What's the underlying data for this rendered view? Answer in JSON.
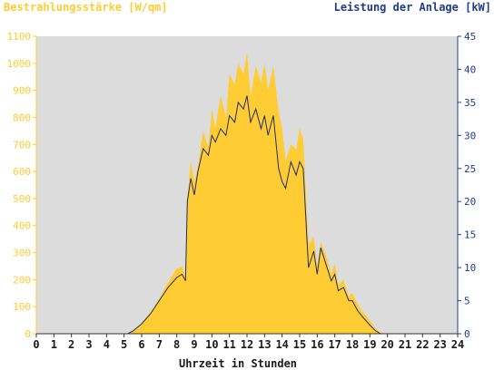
{
  "chart_data": {
    "type": "area",
    "title_left": "Bestrahlungsstärke [W/qm]",
    "title_right": "Leistung der Anlage [kW]",
    "xlabel": "Uhrzeit in Stunden",
    "xlim": [
      0,
      24
    ],
    "x_ticks": [
      "0",
      "1",
      "2",
      "3",
      "4",
      "5",
      "6",
      "7",
      "8",
      "9",
      "10",
      "11",
      "12",
      "13",
      "14",
      "15",
      "16",
      "17",
      "18",
      "19",
      "20",
      "21",
      "22",
      "23",
      "24"
    ],
    "y_left_lim": [
      0,
      1100
    ],
    "y_left_ticks": [
      "0",
      "100",
      "200",
      "300",
      "400",
      "500",
      "600",
      "700",
      "800",
      "900",
      "1000",
      "1100"
    ],
    "y_right_lim": [
      0,
      45
    ],
    "y_right_ticks": [
      "0",
      "5",
      "10",
      "15",
      "20",
      "25",
      "30",
      "35",
      "40",
      "45"
    ],
    "grid": false,
    "colors": {
      "irradiance": "#ffcc33",
      "power": "#1f2d66",
      "plot_bg": "#dcdcdc",
      "left_axis_text": "#ffcc33",
      "right_axis_text": "#1f3d8a"
    },
    "series": [
      {
        "name": "Bestrahlungsstärke",
        "axis": "left",
        "x": [
          0,
          5.2,
          5.5,
          6,
          6.5,
          7,
          7.5,
          8,
          8.3,
          8.5,
          8.6,
          8.8,
          9,
          9.2,
          9.5,
          9.8,
          10,
          10.2,
          10.5,
          10.8,
          11,
          11.3,
          11.5,
          11.8,
          12,
          12.2,
          12.5,
          12.8,
          13,
          13.2,
          13.5,
          13.8,
          14,
          14.2,
          14.5,
          14.8,
          15,
          15.2,
          15.5,
          15.8,
          16,
          16.2,
          16.5,
          16.8,
          17,
          17.2,
          17.5,
          17.8,
          18,
          18.3,
          18.6,
          19,
          19.3,
          19.6,
          20,
          24
        ],
        "values": [
          0,
          0,
          10,
          40,
          80,
          130,
          190,
          240,
          250,
          210,
          500,
          640,
          560,
          620,
          750,
          690,
          830,
          760,
          880,
          800,
          960,
          920,
          1000,
          960,
          1040,
          880,
          990,
          930,
          1000,
          900,
          990,
          820,
          760,
          640,
          700,
          680,
          760,
          720,
          330,
          360,
          250,
          340,
          290,
          220,
          260,
          180,
          200,
          140,
          150,
          110,
          80,
          50,
          20,
          5,
          0,
          0
        ]
      },
      {
        "name": "Leistung",
        "axis": "right",
        "x": [
          0,
          5.2,
          5.5,
          6,
          6.5,
          7,
          7.5,
          8,
          8.3,
          8.5,
          8.6,
          8.8,
          9,
          9.2,
          9.5,
          9.8,
          10,
          10.2,
          10.5,
          10.8,
          11,
          11.3,
          11.5,
          11.8,
          12,
          12.2,
          12.5,
          12.8,
          13,
          13.2,
          13.5,
          13.8,
          14,
          14.2,
          14.5,
          14.8,
          15,
          15.2,
          15.5,
          15.8,
          16,
          16.2,
          16.5,
          16.8,
          17,
          17.2,
          17.5,
          17.8,
          18,
          18.3,
          18.6,
          19,
          19.3,
          19.6,
          20,
          24
        ],
        "values": [
          0,
          0,
          0.4,
          1.5,
          3,
          5,
          7,
          8.5,
          9,
          8,
          20,
          23.5,
          21,
          24.5,
          28,
          27,
          30,
          29,
          31,
          30,
          33,
          32,
          35,
          34,
          36,
          32,
          34,
          31,
          33,
          30,
          33,
          25,
          23,
          22,
          26,
          24,
          26,
          25,
          10,
          12.5,
          9,
          13,
          10.5,
          8,
          9,
          6.5,
          7,
          5,
          5,
          3.5,
          2.5,
          1.3,
          0.5,
          0,
          0,
          0
        ]
      }
    ]
  }
}
